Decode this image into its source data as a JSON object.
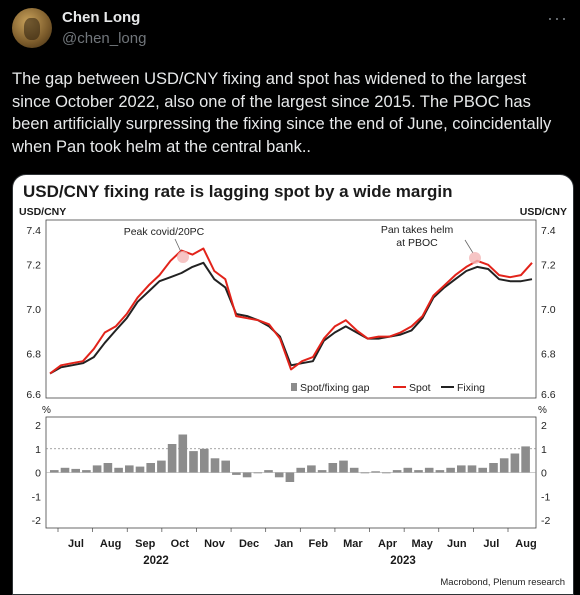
{
  "user": {
    "name": "Chen Long",
    "handle": "@chen_long"
  },
  "more_label": "···",
  "tweet": {
    "text": "The gap between USD/CNY fixing and spot has widened to the largest since October 2022, also one of the largest since 2015. The PBOC has been artificially surpressing the fixing since the end of June, coincidentally when Pan took helm at the central bank.."
  },
  "chart": {
    "title": "USD/CNY fixing rate is lagging spot by a wide margin",
    "left_unit": "USD/CNY",
    "right_unit": "USD/CNY",
    "pct_left": "%",
    "pct_right": "%",
    "annotation_covid": "Peak covid/20PC",
    "annotation_pan_1": "Pan takes helm",
    "annotation_pan_2": "at PBOC",
    "legend_gap": "Spot/fixing gap",
    "legend_spot": "Spot",
    "legend_fixing": "Fixing",
    "source": "Macrobond, Plenum research",
    "year_2022": "2022",
    "year_2023": "2023",
    "colors": {
      "spot": "#e2231a",
      "fixing": "#222222",
      "gap": "#8c8c8c",
      "marker": "#f4b6b6"
    }
  },
  "chart_data": {
    "type": "line",
    "title": "USD/CNY fixing rate is lagging spot by a wide margin",
    "ylabel": "USD/CNY",
    "ylim": [
      6.6,
      7.4
    ],
    "y_ticks": [
      "7.4",
      "7.2",
      "7.0",
      "6.8",
      "6.6"
    ],
    "x_ticks": [
      "Jul",
      "Aug",
      "Sep",
      "Oct",
      "Nov",
      "Dec",
      "Jan",
      "Feb",
      "Mar",
      "Apr",
      "May",
      "Jun",
      "Jul",
      "Aug"
    ],
    "series": [
      {
        "name": "Spot",
        "values": [
          6.7,
          6.74,
          6.75,
          6.76,
          6.82,
          6.9,
          6.93,
          6.99,
          7.07,
          7.13,
          7.18,
          7.25,
          7.3,
          7.28,
          7.31,
          7.2,
          7.16,
          6.98,
          6.97,
          6.96,
          6.94,
          6.87,
          6.72,
          6.76,
          6.78,
          6.87,
          6.93,
          6.96,
          6.91,
          6.87,
          6.88,
          6.88,
          6.9,
          6.93,
          6.98,
          7.08,
          7.13,
          7.18,
          7.22,
          7.25,
          7.23,
          7.18,
          7.17,
          7.18,
          7.24
        ]
      },
      {
        "name": "Fixing",
        "values": [
          6.7,
          6.73,
          6.74,
          6.75,
          6.78,
          6.85,
          6.91,
          6.97,
          7.05,
          7.1,
          7.15,
          7.17,
          7.19,
          7.22,
          7.24,
          7.16,
          7.12,
          6.99,
          6.98,
          6.96,
          6.93,
          6.88,
          6.74,
          6.75,
          6.76,
          6.86,
          6.9,
          6.93,
          6.9,
          6.87,
          6.87,
          6.88,
          6.89,
          6.91,
          6.97,
          7.07,
          7.12,
          7.16,
          7.2,
          7.22,
          7.21,
          7.16,
          7.15,
          7.15,
          7.16
        ]
      }
    ],
    "gap_panel": {
      "ylabel": "%",
      "ylim": [
        -2.5,
        2.5
      ],
      "y_ticks": [
        "2",
        "1",
        "0",
        "-1",
        "-2"
      ],
      "reference_line": 1,
      "values": [
        0.1,
        0.2,
        0.15,
        0.1,
        0.3,
        0.4,
        0.2,
        0.3,
        0.25,
        0.4,
        0.5,
        1.2,
        1.6,
        0.9,
        1.0,
        0.6,
        0.5,
        -0.1,
        -0.2,
        0.0,
        0.1,
        -0.2,
        -0.4,
        0.2,
        0.3,
        0.1,
        0.4,
        0.5,
        0.2,
        0.0,
        0.05,
        0.0,
        0.1,
        0.2,
        0.1,
        0.2,
        0.1,
        0.2,
        0.3,
        0.3,
        0.2,
        0.4,
        0.6,
        0.8,
        1.1
      ]
    }
  }
}
